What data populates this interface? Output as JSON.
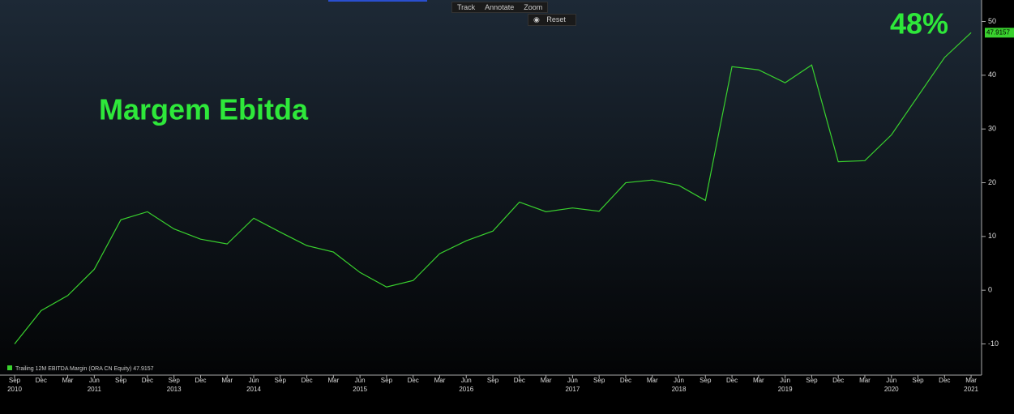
{
  "toolbar": {
    "buttons": [
      "Track",
      "Annotate",
      "Zoom"
    ],
    "reset": "Reset"
  },
  "chart_data": {
    "type": "line",
    "annotations": [
      "Margem Ebitda",
      "48%"
    ],
    "categories": [
      "Sep",
      "Dec",
      "Mar",
      "Jun",
      "Sep",
      "Dec",
      "Sep",
      "Dec",
      "Mar",
      "Jun",
      "Sep",
      "Dec",
      "Mar",
      "Jun",
      "Sep",
      "Dec",
      "Mar",
      "Jun",
      "Sep",
      "Dec",
      "Mar",
      "Jun",
      "Sep",
      "Dec",
      "Mar",
      "Jun",
      "Sep",
      "Dec",
      "Mar",
      "Jun",
      "Sep",
      "Dec",
      "Mar",
      "Jun",
      "Sep",
      "Dec",
      "Mar"
    ],
    "years": [
      "2010",
      null,
      null,
      "2011",
      null,
      null,
      "2013",
      null,
      null,
      "2014",
      null,
      null,
      null,
      "2015",
      null,
      null,
      null,
      "2016",
      null,
      null,
      null,
      "2017",
      null,
      null,
      null,
      "2018",
      null,
      null,
      null,
      "2019",
      null,
      null,
      null,
      "2020",
      null,
      null,
      "2021"
    ],
    "series": [
      {
        "name": "Trailing 12M EBITDA Margin (ORA CN Equity)",
        "color": "#39d12e",
        "values": [
          -10,
          -3.8,
          -1.0,
          3.9,
          13.1,
          14.6,
          11.4,
          9.5,
          8.6,
          13.4,
          10.8,
          8.3,
          7.1,
          3.3,
          0.6,
          1.8,
          6.8,
          9.2,
          11.0,
          16.4,
          14.6,
          15.3,
          14.7,
          20.0,
          20.5,
          19.5,
          16.7,
          41.6,
          41.0,
          38.6,
          41.9,
          23.9,
          24.1,
          28.9,
          36.1,
          43.3,
          47.9157
        ]
      }
    ],
    "ylim": [
      -15.8,
      54
    ],
    "yticks": [
      -10,
      0,
      10,
      20,
      30,
      40,
      50
    ]
  }
}
